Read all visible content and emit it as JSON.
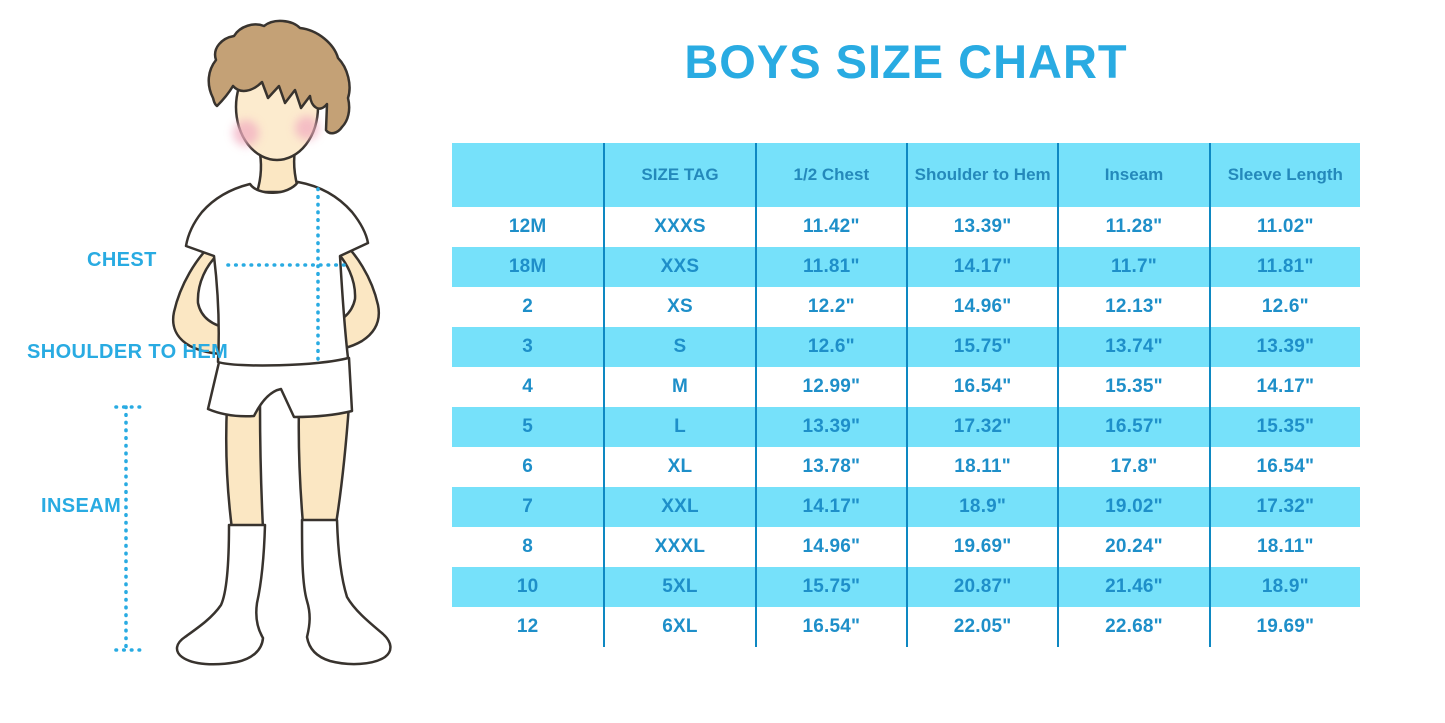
{
  "title_note": "Boys clothing size chart infographic",
  "chart_data": {
    "type": "table",
    "title": "BOYS SIZE CHART",
    "columns": [
      "",
      "SIZE TAG",
      "1/2 Chest",
      "Shoulder to Hem",
      "Inseam",
      "Sleeve Length"
    ],
    "rows": [
      [
        "12M",
        "XXXS",
        "11.42\"",
        "13.39\"",
        "11.28\"",
        "11.02\""
      ],
      [
        "18M",
        "XXS",
        "11.81\"",
        "14.17\"",
        "11.7\"",
        "11.81\""
      ],
      [
        "2",
        "XS",
        "12.2\"",
        "14.96\"",
        "12.13\"",
        "12.6\""
      ],
      [
        "3",
        "S",
        "12.6\"",
        "15.75\"",
        "13.74\"",
        "13.39\""
      ],
      [
        "4",
        "M",
        "12.99\"",
        "16.54\"",
        "15.35\"",
        "14.17\""
      ],
      [
        "5",
        "L",
        "13.39\"",
        "17.32\"",
        "16.57\"",
        "15.35\""
      ],
      [
        "6",
        "XL",
        "13.78\"",
        "18.11\"",
        "17.8\"",
        "16.54\""
      ],
      [
        "7",
        "XXL",
        "14.17\"",
        "18.9\"",
        "19.02\"",
        "17.32\""
      ],
      [
        "8",
        "XXXL",
        "14.96\"",
        "19.69\"",
        "20.24\"",
        "18.11\""
      ],
      [
        "10",
        "5XL",
        "15.75\"",
        "20.87\"",
        "21.46\"",
        "18.9\""
      ],
      [
        "12",
        "6XL",
        "16.54\"",
        "22.05\"",
        "22.68\"",
        "19.69\""
      ]
    ],
    "layout": {
      "striping": "alternating white and cyan rows",
      "legend": "none",
      "grid": "vertical column dividers only"
    }
  },
  "figure": {
    "labels": {
      "chest": "CHEST",
      "shoulder_to_hem": "SHOULDER TO HEM",
      "inseam": "INSEAM"
    }
  },
  "colors": {
    "accent": "#29ABE2",
    "row_cyan": "#76E1FA",
    "divider_blue": "#0E88C2",
    "table_text": "#1E8FC9",
    "skin": "#FBE7C3",
    "hair": "#C4A176"
  }
}
